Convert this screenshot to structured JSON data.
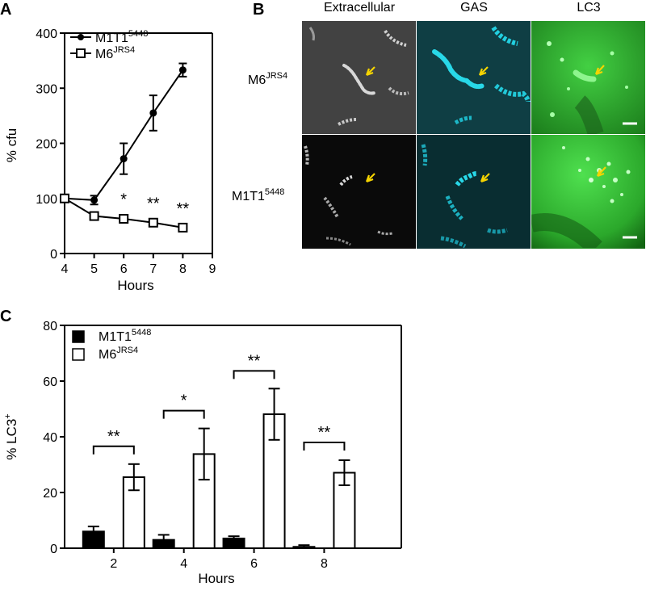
{
  "panel_labels": {
    "a": "A",
    "b": "B",
    "c": "C"
  },
  "panel_a": {
    "ylabel": "% cfu",
    "xlabel": "Hours",
    "xticks": [
      "4",
      "5",
      "6",
      "7",
      "8",
      "9"
    ],
    "yticks": [
      "0",
      "100",
      "200",
      "300",
      "400"
    ],
    "legend": [
      {
        "base": "M1T1",
        "sup": "5448"
      },
      {
        "base": "M6",
        "sup": "JRS4"
      }
    ],
    "significance": [
      "*",
      "**",
      "**"
    ]
  },
  "panel_b": {
    "columns": [
      "Extracellular",
      "GAS",
      "LC3"
    ],
    "rows": [
      {
        "base": "M6",
        "sup": "JRS4"
      },
      {
        "base": "M1T1",
        "sup": "5448"
      }
    ],
    "colors": {
      "gas": "#19c8d2",
      "lc3": "#33c833",
      "arrow": "#f5d400",
      "scale_bar": "#ffffff"
    }
  },
  "panel_c": {
    "ylabel_base": "% LC3",
    "ylabel_sup": "+",
    "xlabel": "Hours",
    "xticks": [
      "2",
      "4",
      "6",
      "8"
    ],
    "yticks": [
      "0",
      "20",
      "40",
      "60",
      "80"
    ],
    "legend": [
      {
        "base": "M1T1",
        "sup": "5448"
      },
      {
        "base": "M6",
        "sup": "JRS4"
      }
    ],
    "significance": [
      "**",
      "*",
      "**",
      "**"
    ]
  },
  "chart_data": [
    {
      "type": "line",
      "xlabel": "Hours",
      "ylabel": "% cfu",
      "xlim": [
        4,
        9
      ],
      "ylim": [
        0,
        400
      ],
      "series": [
        {
          "name": "M1T1 5448",
          "x": [
            4,
            5,
            6,
            7,
            8
          ],
          "y": [
            100,
            97,
            172,
            255,
            333
          ],
          "err": [
            4,
            8,
            28,
            32,
            12
          ],
          "marker": "filled-circle"
        },
        {
          "name": "M6 JRS4",
          "x": [
            4,
            5,
            6,
            7,
            8
          ],
          "y": [
            100,
            68,
            63,
            56,
            47
          ],
          "err": [
            4,
            6,
            5,
            5,
            4
          ],
          "marker": "open-square"
        }
      ],
      "annotations": [
        {
          "x": 6,
          "text": "*"
        },
        {
          "x": 7,
          "text": "**"
        },
        {
          "x": 8,
          "text": "**"
        }
      ]
    },
    {
      "type": "bar",
      "xlabel": "Hours",
      "ylabel": "% LC3+",
      "categories": [
        "2",
        "4",
        "6",
        "8"
      ],
      "ylim": [
        0,
        80
      ],
      "series": [
        {
          "name": "M1T1 5448",
          "values": [
            6,
            3,
            3.5,
            0.5
          ],
          "err": [
            1.8,
            1.8,
            0.8,
            0.6
          ],
          "fill": "#000000"
        },
        {
          "name": "M6 JRS4",
          "values": [
            25.5,
            33.8,
            48.1,
            27.1
          ],
          "err": [
            4.7,
            9.2,
            9.2,
            4.5
          ],
          "fill": "#ffffff"
        }
      ],
      "annotations": [
        {
          "category": "2",
          "text": "**"
        },
        {
          "category": "4",
          "text": "*"
        },
        {
          "category": "6",
          "text": "**"
        },
        {
          "category": "8",
          "text": "**"
        }
      ]
    }
  ]
}
